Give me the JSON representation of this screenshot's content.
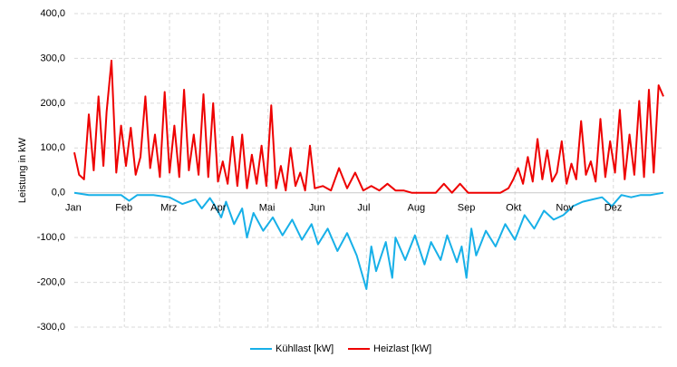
{
  "chart_data": {
    "type": "line",
    "title": "",
    "xlabel": "",
    "ylabel": "Leistung in kW",
    "ylim": [
      -300,
      400
    ],
    "yticks": [
      -300,
      -200,
      -100,
      0,
      100,
      200,
      300,
      400
    ],
    "ytick_labels": [
      "-300,0",
      "-200,0",
      "-100,0",
      "0,0",
      "100,0",
      "200,0",
      "300,0",
      "400,0"
    ],
    "x_unit": "day of year",
    "xlim": [
      1,
      366
    ],
    "months": [
      "Jan",
      "Feb",
      "Mrz",
      "Apr",
      "Mai",
      "Jun",
      "Jul",
      "Aug",
      "Sep",
      "Okt",
      "Nov",
      "Dez"
    ],
    "month_start_day": [
      1,
      32,
      60,
      91,
      121,
      152,
      182,
      213,
      244,
      274,
      305,
      335
    ],
    "grid": true,
    "legend_position": "bottom",
    "series": [
      {
        "name": "Kühllast [kW]",
        "color": "#17b0e8",
        "x": [
          1,
          10,
          20,
          30,
          35,
          40,
          50,
          60,
          68,
          76,
          80,
          85,
          88,
          92,
          95,
          100,
          105,
          108,
          112,
          118,
          124,
          130,
          136,
          142,
          148,
          152,
          158,
          164,
          170,
          176,
          182,
          185,
          188,
          194,
          198,
          200,
          206,
          212,
          218,
          222,
          228,
          232,
          238,
          241,
          244,
          247,
          250,
          256,
          262,
          268,
          274,
          280,
          286,
          292,
          298,
          304,
          310,
          316,
          322,
          328,
          334,
          340,
          346,
          352,
          358,
          366
        ],
        "y": [
          0,
          -5,
          -5,
          -5,
          -18,
          -5,
          -5,
          -10,
          -25,
          -15,
          -35,
          -12,
          -28,
          -55,
          -20,
          -70,
          -35,
          -100,
          -45,
          -85,
          -55,
          -95,
          -60,
          -105,
          -70,
          -115,
          -80,
          -130,
          -90,
          -140,
          -215,
          -120,
          -175,
          -110,
          -190,
          -100,
          -150,
          -95,
          -160,
          -110,
          -150,
          -95,
          -155,
          -120,
          -190,
          -80,
          -140,
          -85,
          -120,
          -70,
          -105,
          -50,
          -80,
          -40,
          -60,
          -50,
          -30,
          -20,
          -15,
          -10,
          -30,
          -5,
          -10,
          -5,
          -5,
          0
        ]
      },
      {
        "name": "Heizlast [kW]",
        "color": "#ee0000",
        "x": [
          1,
          4,
          7,
          10,
          13,
          16,
          19,
          21,
          24,
          27,
          30,
          33,
          36,
          39,
          42,
          45,
          48,
          51,
          54,
          57,
          60,
          63,
          66,
          69,
          72,
          75,
          78,
          81,
          84,
          87,
          90,
          93,
          96,
          99,
          102,
          105,
          108,
          111,
          114,
          117,
          120,
          123,
          126,
          129,
          132,
          135,
          138,
          141,
          144,
          147,
          150,
          155,
          160,
          165,
          170,
          175,
          180,
          185,
          190,
          195,
          200,
          205,
          210,
          215,
          220,
          225,
          230,
          235,
          240,
          245,
          250,
          255,
          260,
          265,
          270,
          273,
          276,
          279,
          282,
          285,
          288,
          291,
          294,
          297,
          300,
          303,
          306,
          309,
          312,
          315,
          318,
          321,
          324,
          327,
          330,
          333,
          336,
          339,
          342,
          345,
          348,
          351,
          354,
          357,
          360,
          363,
          366
        ],
        "y": [
          90,
          40,
          30,
          175,
          50,
          215,
          60,
          180,
          295,
          45,
          150,
          60,
          145,
          40,
          80,
          215,
          55,
          130,
          35,
          225,
          45,
          150,
          35,
          230,
          50,
          130,
          40,
          220,
          35,
          200,
          25,
          70,
          20,
          125,
          15,
          130,
          10,
          85,
          20,
          105,
          15,
          195,
          10,
          60,
          5,
          100,
          15,
          45,
          5,
          105,
          10,
          15,
          5,
          55,
          10,
          45,
          5,
          15,
          5,
          20,
          5,
          5,
          0,
          0,
          0,
          0,
          20,
          0,
          20,
          0,
          0,
          0,
          0,
          0,
          10,
          30,
          55,
          20,
          80,
          25,
          120,
          30,
          95,
          25,
          45,
          115,
          20,
          65,
          30,
          160,
          40,
          70,
          25,
          165,
          35,
          115,
          45,
          185,
          30,
          130,
          40,
          205,
          35,
          230,
          45,
          240,
          215
        ]
      }
    ]
  }
}
